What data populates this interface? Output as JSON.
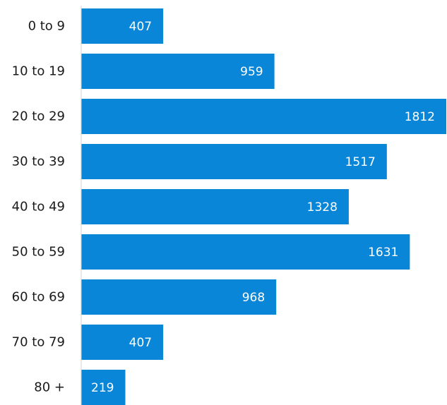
{
  "chart_data": {
    "type": "bar",
    "orientation": "horizontal",
    "title": "",
    "xlabel": "",
    "ylabel": "",
    "categories": [
      "0 to 9",
      "10 to 19",
      "20 to 29",
      "30 to 39",
      "40 to 49",
      "50 to 59",
      "60 to 69",
      "70 to 79",
      "80 +"
    ],
    "values": [
      407,
      959,
      1812,
      1517,
      1328,
      1631,
      968,
      407,
      219
    ],
    "data_labels": [
      "407",
      "959",
      "1812",
      "1517",
      "1328",
      "1631",
      "968",
      "407",
      "219"
    ],
    "xlim": [
      0,
      1812
    ],
    "grid": false,
    "legend": "none",
    "bar_color": "#0a86d8",
    "axis_color": "#d0d0d0"
  }
}
